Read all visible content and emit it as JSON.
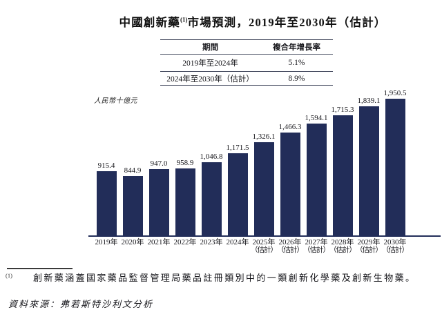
{
  "title": {
    "prefix": "中國創新藥",
    "sup": "(1)",
    "suffix": "市場預測，2019年至2030年（估計）"
  },
  "cagr_table": {
    "headers": [
      "期間",
      "複合年增長率"
    ],
    "rows": [
      {
        "period": "2019年至2024年",
        "cagr": "5.1%"
      },
      {
        "period": "2024年至2030年（估計）",
        "cagr": "8.9%"
      }
    ]
  },
  "chart_data": {
    "type": "bar",
    "title": "中國創新藥市場預測，2019年至2030年（估計）",
    "unit_label": "人民幣十億元",
    "ylabel": "人民幣十億元",
    "xlabel": "",
    "categories": [
      "2019年",
      "2020年",
      "2021年",
      "2022年",
      "2023年",
      "2024年",
      "2025年",
      "2026年",
      "2027年",
      "2028年",
      "2029年",
      "2030年"
    ],
    "category_notes": [
      "",
      "",
      "",
      "",
      "",
      "",
      "（估計）",
      "（估計）",
      "（估計）",
      "（估計）",
      "（估計）",
      "（估計）"
    ],
    "values": [
      915.4,
      844.9,
      947.0,
      958.9,
      1046.8,
      1171.5,
      1326.1,
      1466.3,
      1594.1,
      1715.3,
      1839.1,
      1950.5
    ],
    "value_labels": [
      "915.4",
      "844.9",
      "947.0",
      "958.9",
      "1,046.8",
      "1,171.5",
      "1,326.1",
      "1,466.3",
      "1,594.1",
      "1,715.3",
      "1,839.1",
      "1,950.5"
    ],
    "ylim": [
      0,
      2000
    ],
    "grid": false,
    "legend": "none",
    "bar_color": "#222d59",
    "axis_color": "#222d59"
  },
  "footnote": {
    "marker": "(1)",
    "text": "創新藥涵蓋國家藥品監督管理局藥品註冊類別中的一類創新化學藥及創新生物藥。"
  },
  "source_line": "資料來源：弗若斯特沙利文分析"
}
